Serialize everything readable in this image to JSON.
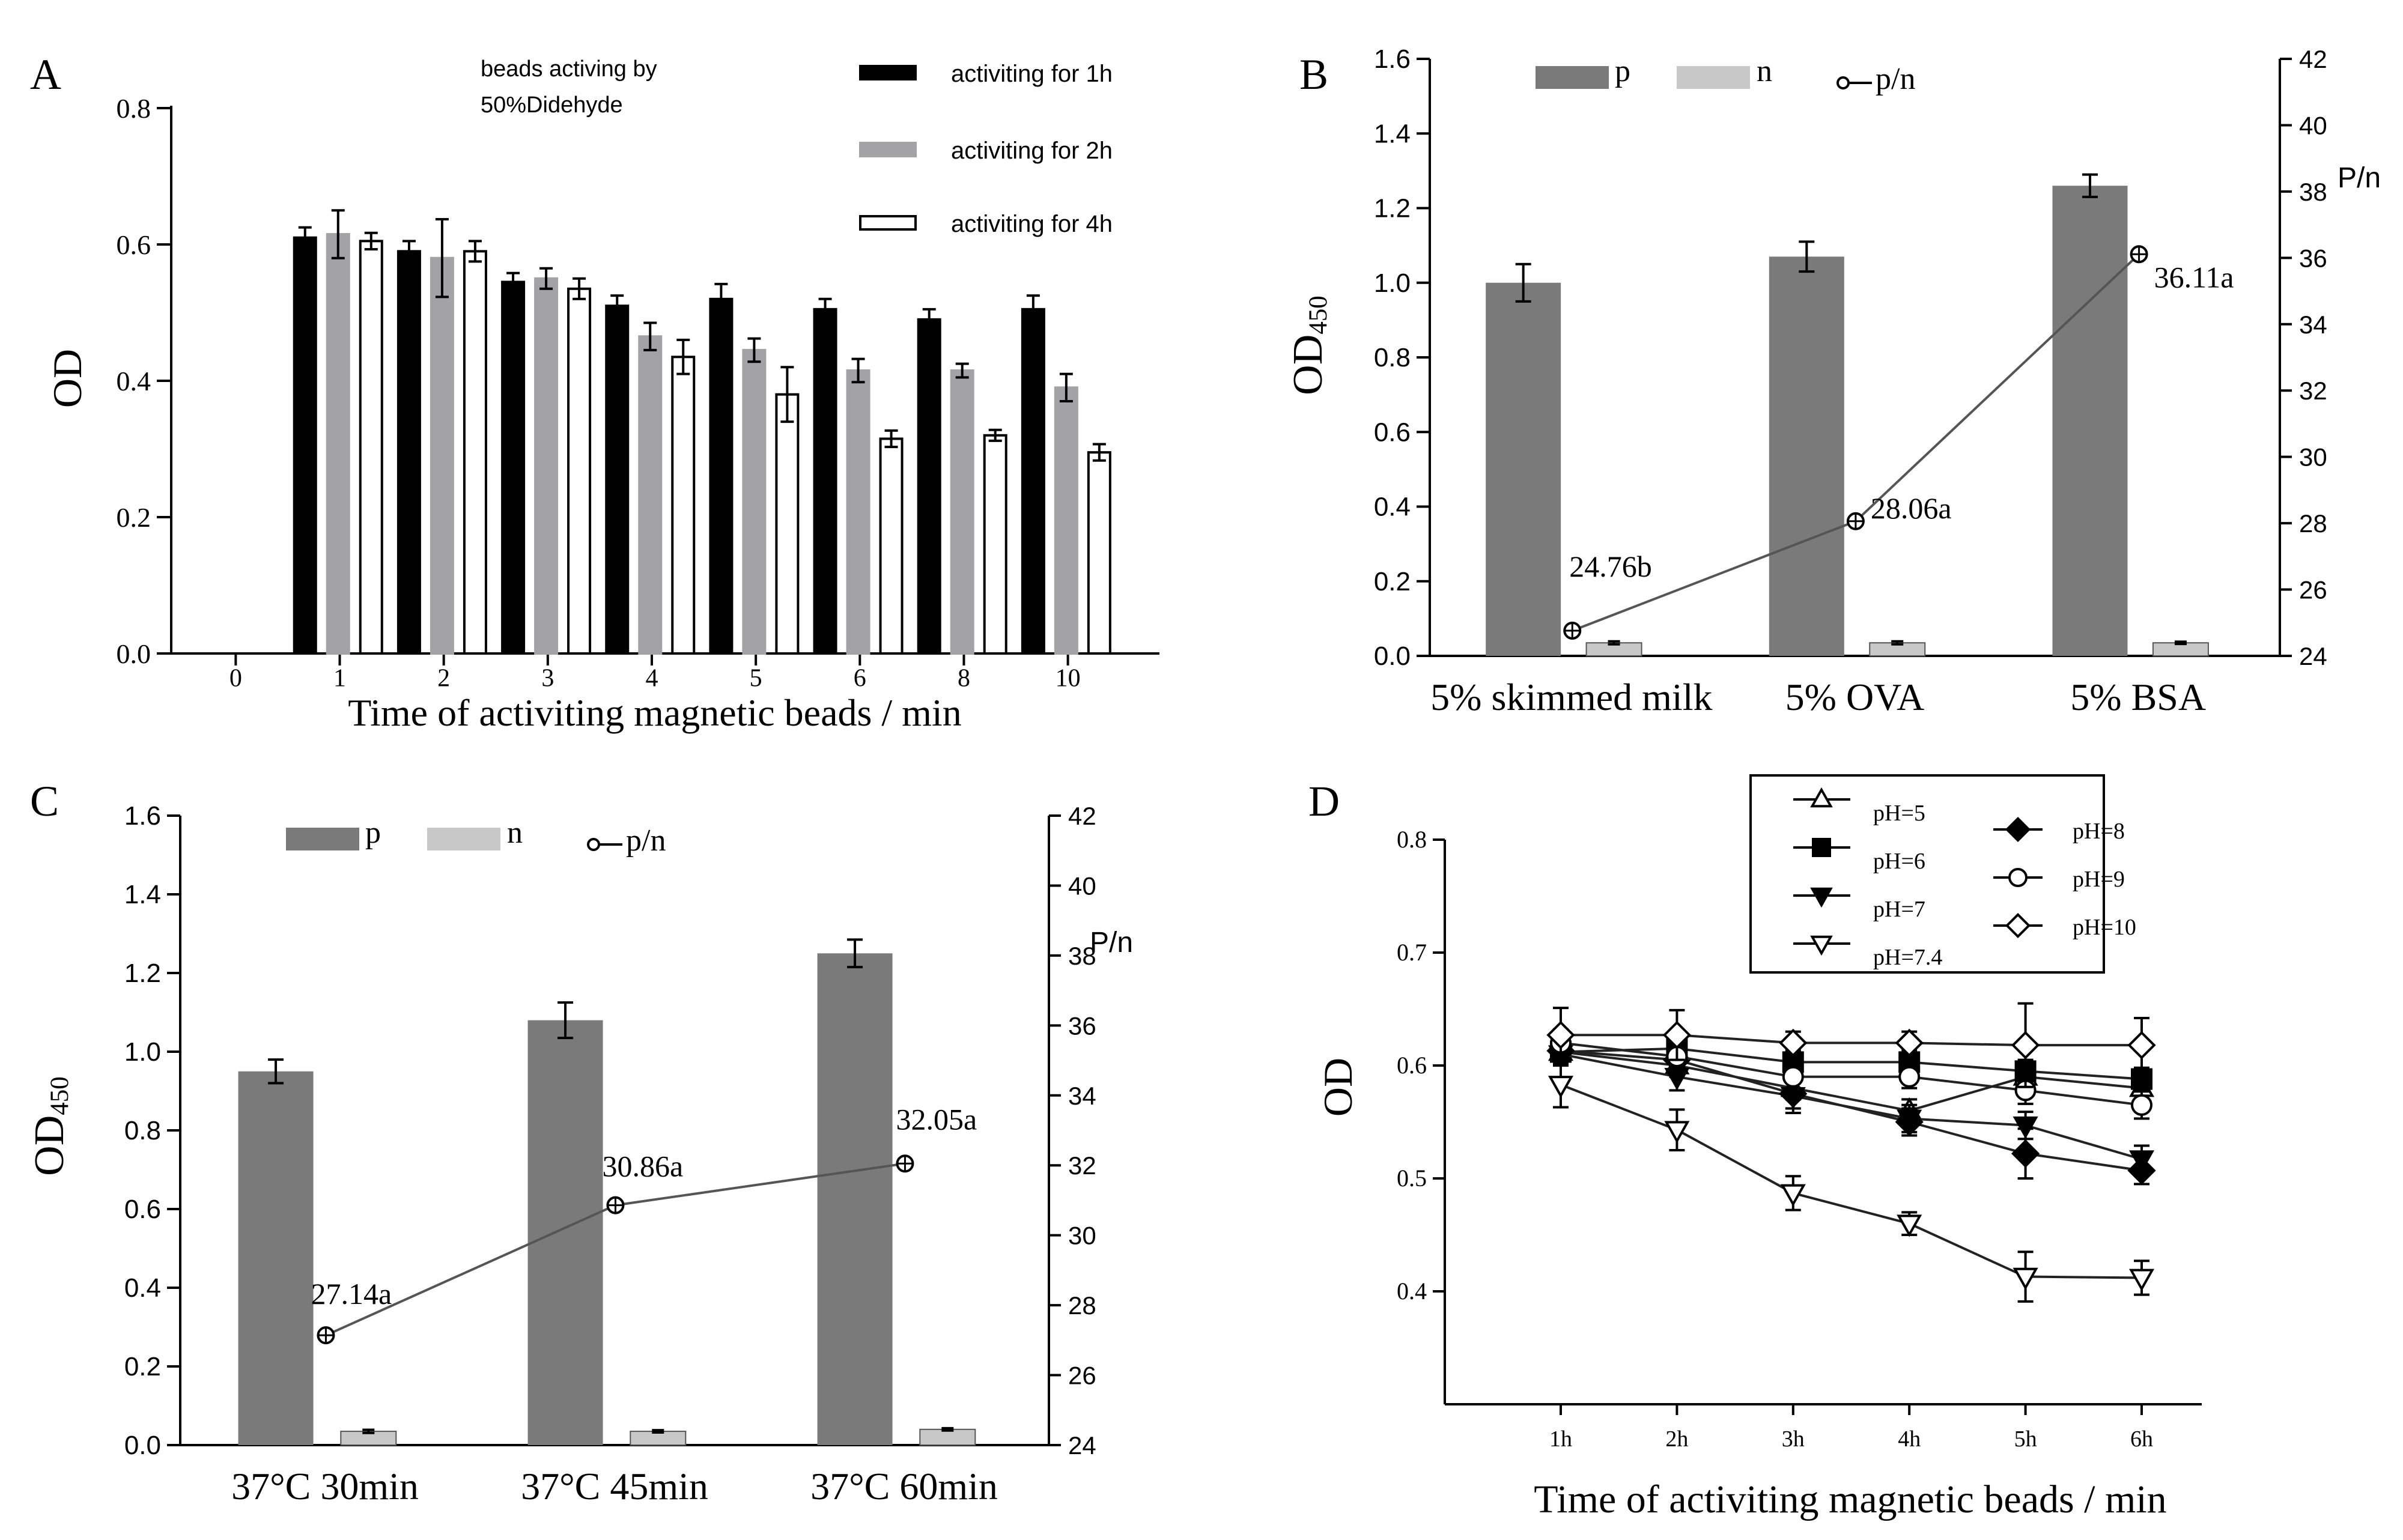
{
  "colors": {
    "black": "#000000",
    "dark": "#7a7a7a",
    "mid": "#a3a3a6",
    "light": "#c8c8c8",
    "white": "#ffffff"
  },
  "chart_data": [
    {
      "panel": "A",
      "type": "bar",
      "title": "",
      "note_lines": [
        "beads activing by",
        "50%Didehyde"
      ],
      "xlabel": "Time of activiting magnetic beads / min",
      "ylabel": "OD",
      "ylim": [
        0,
        0.8
      ],
      "yticks": [
        "0.0",
        "0.2",
        "0.4",
        "0.6",
        "0.8"
      ],
      "categories": [
        "0",
        "1",
        "2",
        "3",
        "4",
        "5",
        "6",
        "8",
        "10"
      ],
      "legend": "top-right",
      "series": [
        {
          "name": "activiting for 1h",
          "color": "black",
          "values": [
            null,
            0.61,
            0.59,
            0.545,
            0.51,
            0.52,
            0.505,
            0.49,
            0.505
          ],
          "errors": [
            null,
            0.015,
            0.015,
            0.013,
            0.015,
            0.022,
            0.015,
            0.015,
            0.02
          ]
        },
        {
          "name": "activiting for 2h",
          "color": "mid",
          "values": [
            null,
            0.615,
            0.58,
            0.55,
            0.465,
            0.445,
            0.415,
            0.415,
            0.39
          ],
          "errors": [
            null,
            0.035,
            0.057,
            0.015,
            0.02,
            0.017,
            0.017,
            0.01,
            0.02
          ]
        },
        {
          "name": "activiting for 4h",
          "color": "white",
          "values": [
            null,
            0.605,
            0.59,
            0.535,
            0.435,
            0.38,
            0.315,
            0.32,
            0.295
          ],
          "errors": [
            null,
            0.012,
            0.015,
            0.015,
            0.025,
            0.04,
            0.012,
            0.008,
            0.012
          ]
        }
      ]
    },
    {
      "panel": "B",
      "type": "bar",
      "title": "",
      "xlabel": "",
      "ylabel": "OD450",
      "y2label": "P/n",
      "ylim": [
        0,
        1.6
      ],
      "y2lim": [
        24,
        42
      ],
      "yticks": [
        "0.0",
        "0.2",
        "0.4",
        "0.6",
        "0.8",
        "1.0",
        "1.2",
        "1.4",
        "1.6"
      ],
      "y2ticks": [
        "24",
        "26",
        "28",
        "30",
        "32",
        "34",
        "36",
        "38",
        "40",
        "42"
      ],
      "categories": [
        "5% skimmed milk",
        "5% OVA",
        "5% BSA"
      ],
      "legend": "top",
      "series": [
        {
          "name": "p",
          "color": "dark",
          "values": [
            1.0,
            1.07,
            1.26
          ],
          "errors": [
            0.05,
            0.04,
            0.03
          ]
        },
        {
          "name": "n",
          "color": "light",
          "values": [
            0.035,
            0.035,
            0.035
          ],
          "errors": [
            0.004,
            0.004,
            0.003
          ]
        },
        {
          "name": "p/n",
          "axis": "right",
          "values": [
            24.76,
            28.06,
            36.11
          ],
          "labels": [
            "24.76b",
            "28.06a",
            "36.11a"
          ]
        }
      ]
    },
    {
      "panel": "C",
      "type": "bar",
      "title": "",
      "xlabel": "",
      "ylabel": "OD450",
      "y2label": "P/n",
      "ylim": [
        0,
        1.6
      ],
      "y2lim": [
        24,
        42
      ],
      "yticks": [
        "0.0",
        "0.2",
        "0.4",
        "0.6",
        "0.8",
        "1.0",
        "1.2",
        "1.4",
        "1.6"
      ],
      "y2ticks": [
        "24",
        "26",
        "28",
        "30",
        "32",
        "34",
        "36",
        "38",
        "40",
        "42"
      ],
      "categories": [
        "37°C 30min",
        "37°C 45min",
        "37°C 60min"
      ],
      "legend": "top",
      "series": [
        {
          "name": "p",
          "color": "dark",
          "values": [
            0.95,
            1.08,
            1.25
          ],
          "errors": [
            0.03,
            0.045,
            0.035
          ]
        },
        {
          "name": "n",
          "color": "light",
          "values": [
            0.035,
            0.035,
            0.04
          ],
          "errors": [
            0.004,
            0.003,
            0.003
          ]
        },
        {
          "name": "p/n",
          "axis": "right",
          "values": [
            27.14,
            30.86,
            32.05
          ],
          "labels": [
            "27.14a",
            "30.86a",
            "32.05a"
          ]
        }
      ]
    },
    {
      "panel": "D",
      "type": "line",
      "title": "",
      "xlabel": "Time of activiting magnetic beads / min",
      "ylabel": "OD",
      "ylim": [
        0.3,
        0.8
      ],
      "yticks": [
        "0.4",
        "0.5",
        "0.6",
        "0.7",
        "0.8"
      ],
      "x": [
        "1h",
        "2h",
        "3h",
        "4h",
        "5h",
        "6h"
      ],
      "legend": "top",
      "series": [
        {
          "name": "pH=5",
          "marker": "tri-up-open",
          "values": [
            0.612,
            0.6,
            0.58,
            0.56,
            0.59,
            0.58
          ],
          "errors": [
            0.01,
            0.01,
            0.01,
            0.01,
            0.012,
            0.01
          ]
        },
        {
          "name": "pH=6",
          "marker": "square-filled",
          "values": [
            0.612,
            0.615,
            0.603,
            0.603,
            0.595,
            0.588
          ],
          "errors": [
            0.01,
            0.01,
            0.01,
            0.01,
            0.01,
            0.01
          ]
        },
        {
          "name": "pH=7",
          "marker": "tri-down-filled",
          "values": [
            0.61,
            0.59,
            0.573,
            0.553,
            0.547,
            0.517
          ],
          "errors": [
            0.01,
            0.012,
            0.015,
            0.012,
            0.012,
            0.012
          ]
        },
        {
          "name": "pH=7.4",
          "marker": "tri-down-open",
          "values": [
            0.583,
            0.543,
            0.487,
            0.46,
            0.413,
            0.412
          ],
          "errors": [
            0.02,
            0.018,
            0.015,
            0.01,
            0.022,
            0.015
          ]
        },
        {
          "name": "pH=8",
          "marker": "diamond-filled",
          "values": [
            0.613,
            0.605,
            0.575,
            0.55,
            0.522,
            0.507
          ],
          "errors": [
            0.01,
            0.01,
            0.013,
            0.012,
            0.022,
            0.012
          ]
        },
        {
          "name": "pH=9",
          "marker": "circle-open",
          "values": [
            0.62,
            0.608,
            0.59,
            0.59,
            0.578,
            0.565
          ],
          "errors": [
            0.012,
            0.015,
            0.01,
            0.01,
            0.012,
            0.012
          ]
        },
        {
          "name": "pH=10",
          "marker": "diamond-open",
          "values": [
            0.627,
            0.627,
            0.62,
            0.62,
            0.618,
            0.618
          ],
          "errors": [
            0.024,
            0.022,
            0.01,
            0.01,
            0.037,
            0.024
          ]
        }
      ]
    }
  ]
}
